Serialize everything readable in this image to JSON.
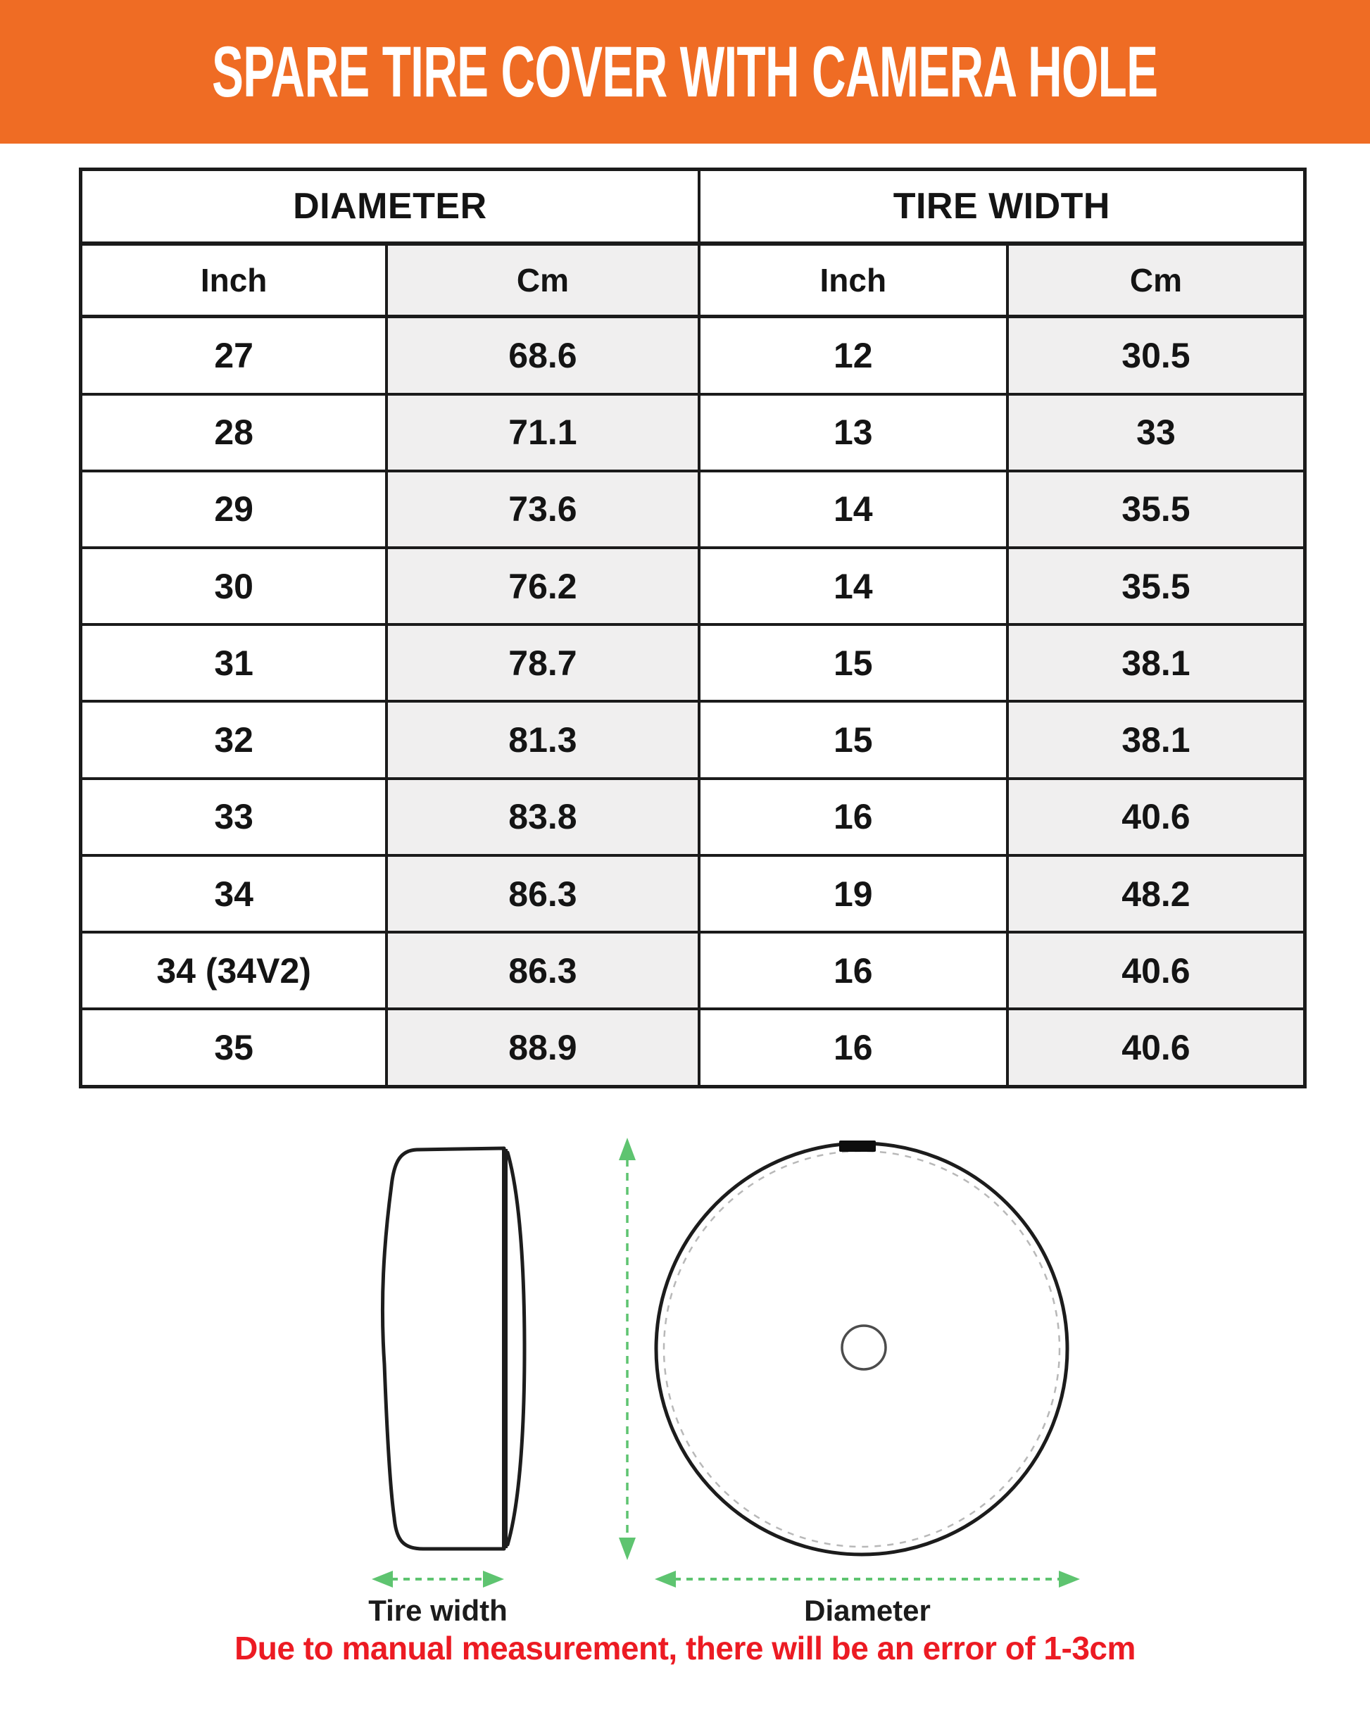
{
  "banner": {
    "title": "SPARE TIRE COVER WITH CAMERA HOLE",
    "bg_color": "#EF6C24"
  },
  "chart_data": {
    "type": "table",
    "group_headers": [
      "DIAMETER",
      "TIRE WIDTH"
    ],
    "columns": [
      "Inch",
      "Cm",
      "Inch",
      "Cm"
    ],
    "rows": [
      [
        "27",
        "68.6",
        "12",
        "30.5"
      ],
      [
        "28",
        "71.1",
        "13",
        "33"
      ],
      [
        "29",
        "73.6",
        "14",
        "35.5"
      ],
      [
        "30",
        "76.2",
        "14",
        "35.5"
      ],
      [
        "31",
        "78.7",
        "15",
        "38.1"
      ],
      [
        "32",
        "81.3",
        "15",
        "38.1"
      ],
      [
        "33",
        "83.8",
        "16",
        "40.6"
      ],
      [
        "34",
        "86.3",
        "19",
        "48.2"
      ],
      [
        "34 (34V2)",
        "86.3",
        "16",
        "40.6"
      ],
      [
        "35",
        "88.9",
        "16",
        "40.6"
      ]
    ]
  },
  "diagram": {
    "tire_width_label": "Tire width",
    "diameter_label": "Diameter"
  },
  "note": {
    "text": "Due to manual measurement, there will be an error of 1-3cm"
  },
  "colors": {
    "accent_orange": "#EF6C24",
    "arrow_green": "#5EC470",
    "cell_gray": "#F0EFEF",
    "border_dark": "#1B1B1B",
    "note_red": "#EC1B23"
  }
}
